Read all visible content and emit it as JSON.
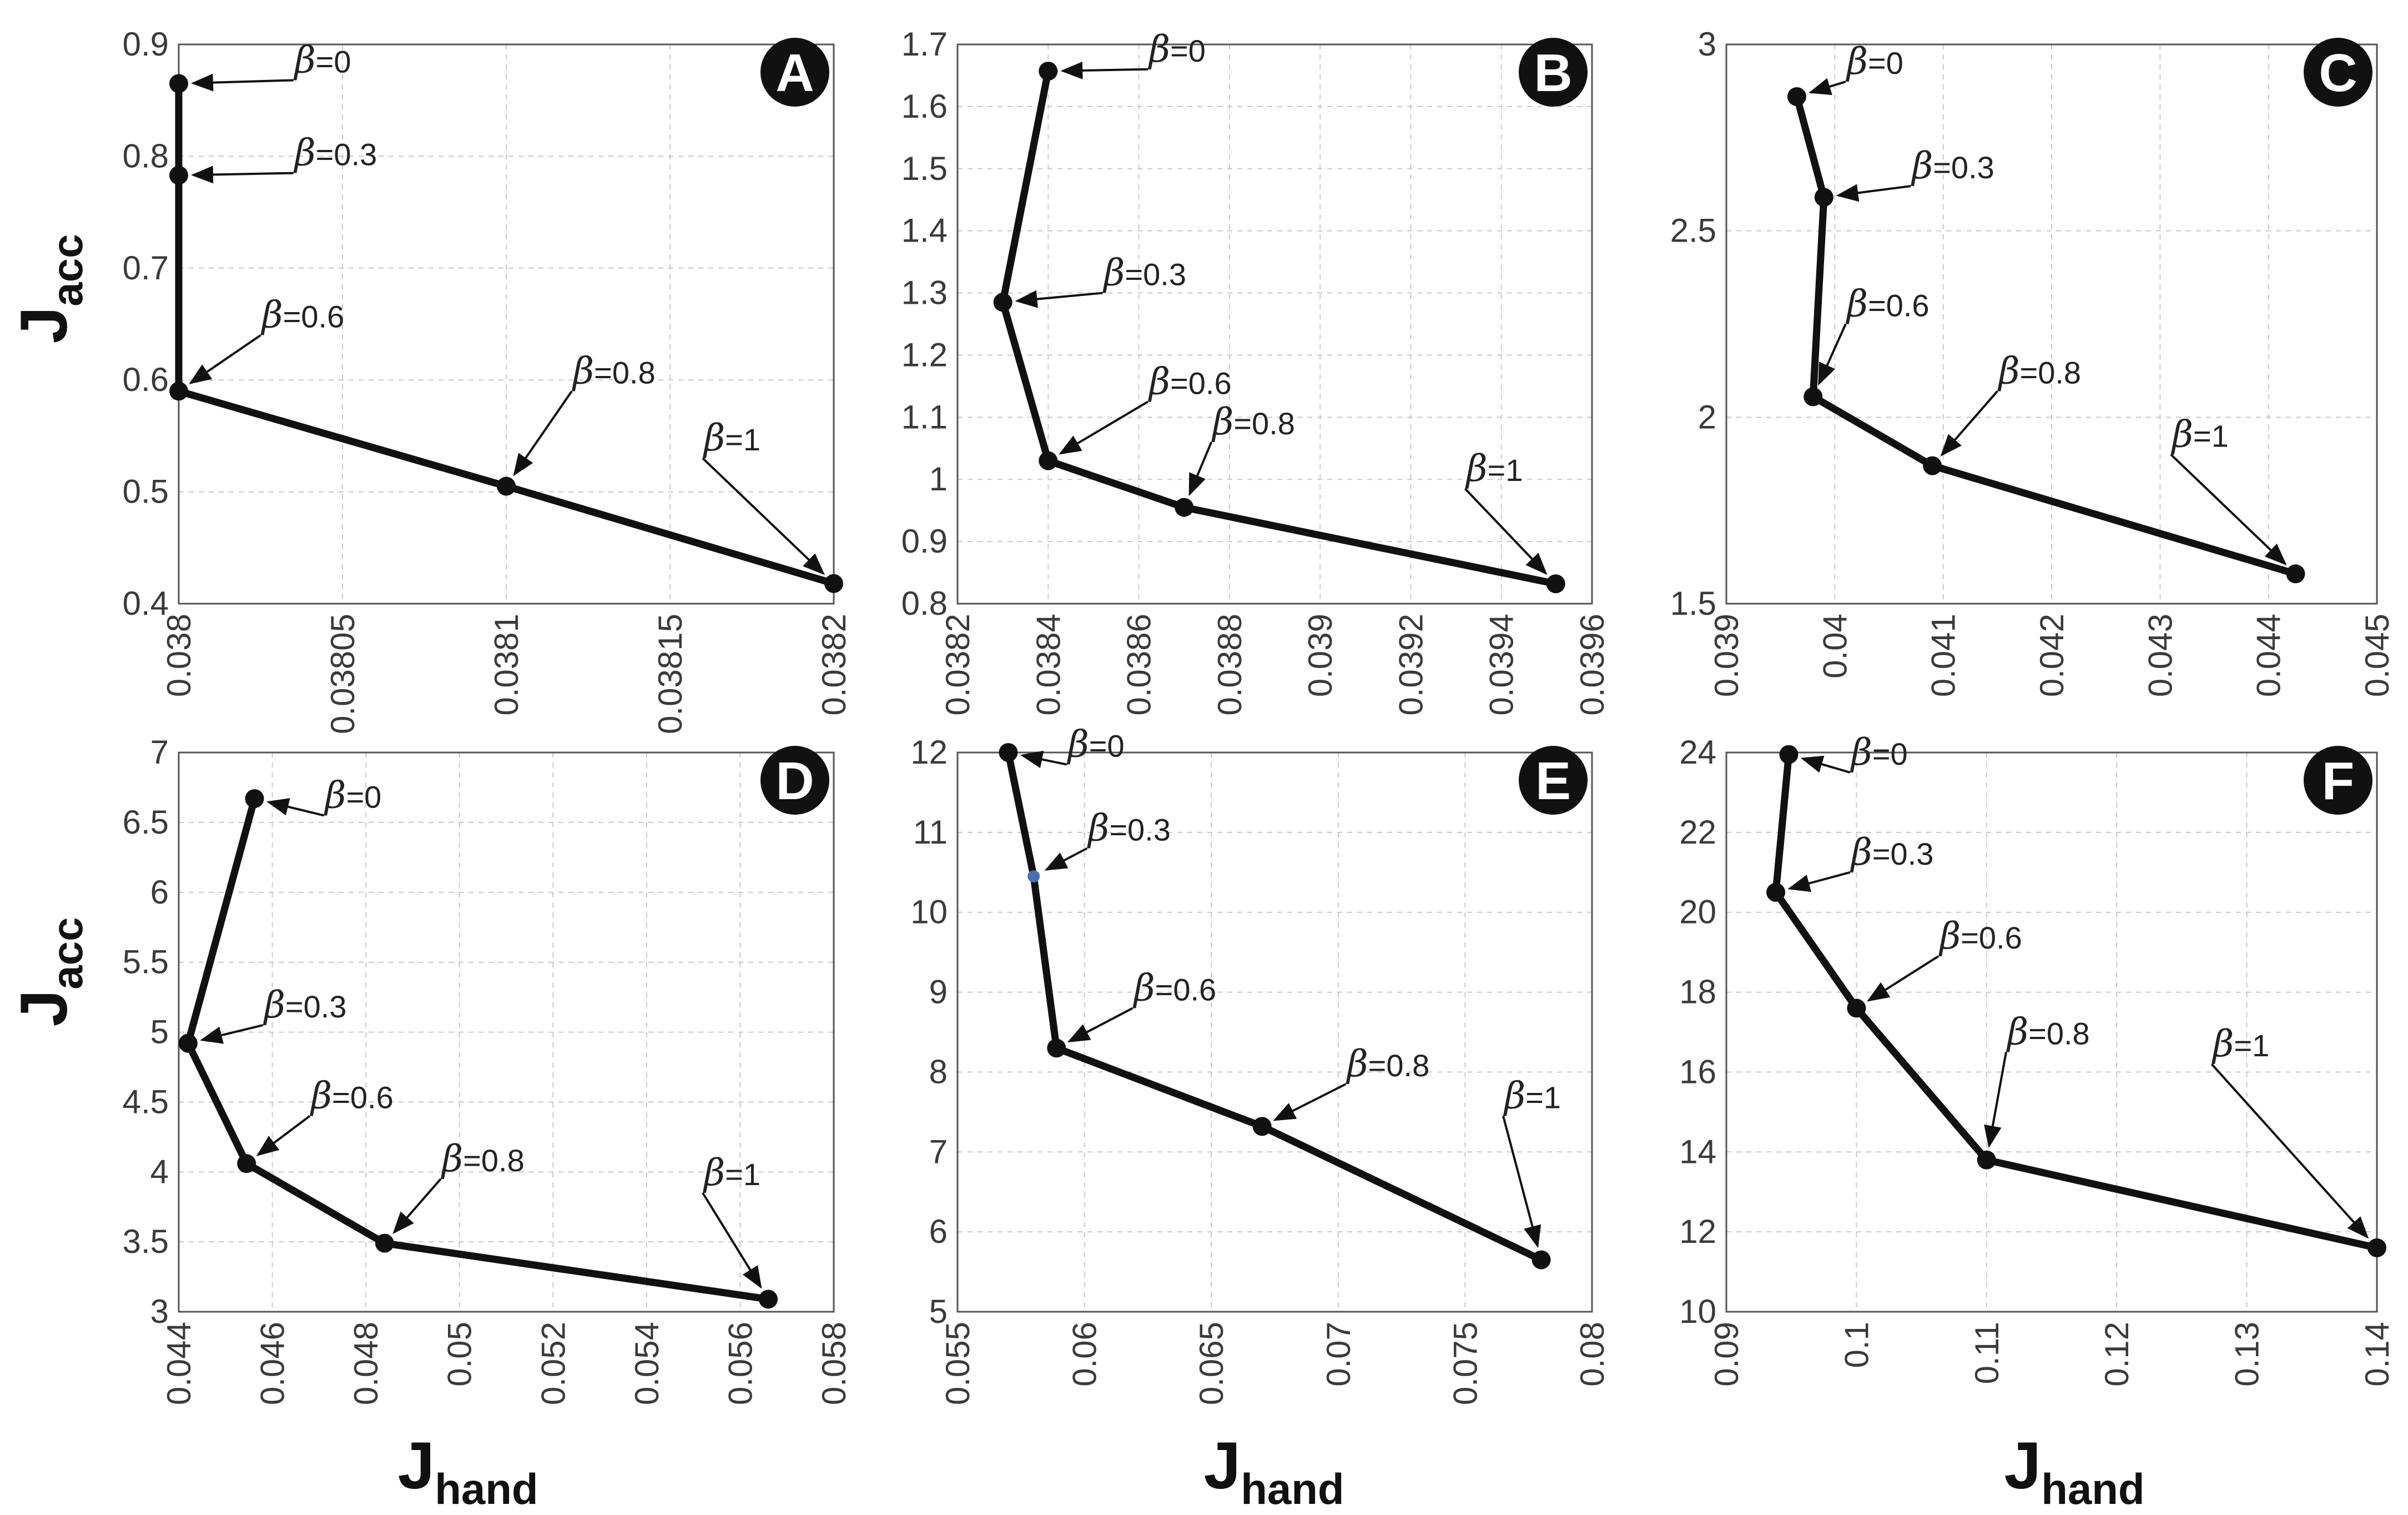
{
  "figure": {
    "xlabel": {
      "main": "J",
      "sub": "hand"
    },
    "ylabel": {
      "main": "J",
      "sub": "acc"
    }
  },
  "chart_data": [
    {
      "type": "line",
      "panel_label": "A",
      "xlim": [
        0.038,
        0.0382
      ],
      "ylim": [
        0.4,
        0.9
      ],
      "xticks": [
        0.038,
        0.03805,
        0.0381,
        0.03815,
        0.0382
      ],
      "xtick_labels": [
        "0.038",
        "0.03805",
        "0.0381",
        "0.03815",
        "0.0382"
      ],
      "yticks": [
        0.4,
        0.5,
        0.6,
        0.7,
        0.8,
        0.9
      ],
      "ytick_labels": [
        "0.4",
        "0.5",
        "0.6",
        "0.7",
        "0.8",
        "0.9"
      ],
      "points": [
        {
          "beta": "=0",
          "x": 0.038,
          "y": 0.865
        },
        {
          "beta": "=0.3",
          "x": 0.038,
          "y": 0.783
        },
        {
          "beta": "=0.6",
          "x": 0.038,
          "y": 0.59
        },
        {
          "beta": "=0.8",
          "x": 0.0381,
          "y": 0.505
        },
        {
          "beta": "=1",
          "x": 0.0382,
          "y": 0.418
        }
      ],
      "annotations": [
        {
          "text": "=0",
          "pt": 0,
          "tx": 0.038035,
          "ty": 0.868
        },
        {
          "text": "=0.3",
          "pt": 1,
          "tx": 0.038035,
          "ty": 0.785
        },
        {
          "text": "=0.6",
          "pt": 2,
          "tx": 0.038025,
          "ty": 0.64
        },
        {
          "text": "=0.8",
          "pt": 3,
          "tx": 0.03812,
          "ty": 0.59
        },
        {
          "text": "=1",
          "pt": 4,
          "tx": 0.03816,
          "ty": 0.53
        }
      ]
    },
    {
      "type": "line",
      "panel_label": "B",
      "xlim": [
        0.0382,
        0.0396
      ],
      "ylim": [
        0.8,
        1.7
      ],
      "xticks": [
        0.0382,
        0.0384,
        0.0386,
        0.0388,
        0.039,
        0.0392,
        0.0394,
        0.0396
      ],
      "xtick_labels": [
        "0.0382",
        "0.0384",
        "0.0386",
        "0.0388",
        "0.039",
        "0.0392",
        "0.0394",
        "0.0396"
      ],
      "yticks": [
        0.8,
        0.9,
        1.0,
        1.1,
        1.2,
        1.3,
        1.4,
        1.5,
        1.6,
        1.7
      ],
      "ytick_labels": [
        "0.8",
        "0.9",
        "1",
        "1.1",
        "1.2",
        "1.3",
        "1.4",
        "1.5",
        "1.6",
        "1.7"
      ],
      "points": [
        {
          "beta": "=0",
          "x": 0.0384,
          "y": 1.657
        },
        {
          "beta": "=0.3",
          "x": 0.0383,
          "y": 1.285
        },
        {
          "beta": "=0.6",
          "x": 0.0384,
          "y": 1.03
        },
        {
          "beta": "=0.8",
          "x": 0.0387,
          "y": 0.955
        },
        {
          "beta": "=1",
          "x": 0.03952,
          "y": 0.832
        }
      ],
      "annotations": [
        {
          "text": "=0",
          "pt": 0,
          "tx": 0.03862,
          "ty": 1.66
        },
        {
          "text": "=0.3",
          "pt": 1,
          "tx": 0.03852,
          "ty": 1.3
        },
        {
          "text": "=0.6",
          "pt": 2,
          "tx": 0.03862,
          "ty": 1.125
        },
        {
          "text": "=0.8",
          "pt": 3,
          "tx": 0.03876,
          "ty": 1.06
        },
        {
          "text": "=1",
          "pt": 4,
          "tx": 0.03932,
          "ty": 0.985
        }
      ]
    },
    {
      "type": "line",
      "panel_label": "C",
      "xlim": [
        0.039,
        0.045
      ],
      "ylim": [
        1.5,
        3.0
      ],
      "xticks": [
        0.039,
        0.04,
        0.041,
        0.042,
        0.043,
        0.044,
        0.045
      ],
      "xtick_labels": [
        "0.039",
        "0.04",
        "0.041",
        "0.042",
        "0.043",
        "0.044",
        "0.045"
      ],
      "yticks": [
        1.5,
        2.0,
        2.5,
        3.0
      ],
      "ytick_labels": [
        "1.5",
        "2",
        "2.5",
        "3"
      ],
      "points": [
        {
          "beta": "=0",
          "x": 0.03965,
          "y": 2.86
        },
        {
          "beta": "=0.3",
          "x": 0.0399,
          "y": 2.59
        },
        {
          "beta": "=0.6",
          "x": 0.0398,
          "y": 2.055
        },
        {
          "beta": "=0.8",
          "x": 0.0409,
          "y": 1.87
        },
        {
          "beta": "=1",
          "x": 0.04425,
          "y": 1.58
        }
      ],
      "annotations": [
        {
          "text": "=0",
          "pt": 0,
          "tx": 0.0401,
          "ty": 2.9
        },
        {
          "text": "=0.3",
          "pt": 1,
          "tx": 0.0407,
          "ty": 2.62
        },
        {
          "text": "=0.6",
          "pt": 2,
          "tx": 0.0401,
          "ty": 2.25
        },
        {
          "text": "=0.8",
          "pt": 3,
          "tx": 0.0415,
          "ty": 2.07
        },
        {
          "text": "=1",
          "pt": 4,
          "tx": 0.0431,
          "ty": 1.9
        }
      ]
    },
    {
      "type": "line",
      "panel_label": "D",
      "xlim": [
        0.044,
        0.058
      ],
      "ylim": [
        3.0,
        7.0
      ],
      "xticks": [
        0.044,
        0.046,
        0.048,
        0.05,
        0.052,
        0.054,
        0.056,
        0.058
      ],
      "xtick_labels": [
        "0.044",
        "0.046",
        "0.048",
        "0.05",
        "0.052",
        "0.054",
        "0.056",
        "0.058"
      ],
      "yticks": [
        3.0,
        3.5,
        4.0,
        4.5,
        5.0,
        5.5,
        6.0,
        6.5,
        7.0
      ],
      "ytick_labels": [
        "3",
        "3.5",
        "4",
        "4.5",
        "5",
        "5.5",
        "6",
        "6.5",
        "7"
      ],
      "points": [
        {
          "beta": "=0",
          "x": 0.04562,
          "y": 6.67
        },
        {
          "beta": "=0.3",
          "x": 0.0442,
          "y": 4.92
        },
        {
          "beta": "=0.6",
          "x": 0.04545,
          "y": 4.06
        },
        {
          "beta": "=0.8",
          "x": 0.0484,
          "y": 3.49
        },
        {
          "beta": "=1",
          "x": 0.0566,
          "y": 3.09
        }
      ],
      "annotations": [
        {
          "text": "=0",
          "pt": 0,
          "tx": 0.0471,
          "ty": 6.55
        },
        {
          "text": "=0.3",
          "pt": 1,
          "tx": 0.0458,
          "ty": 5.05
        },
        {
          "text": "=0.6",
          "pt": 2,
          "tx": 0.0468,
          "ty": 4.4
        },
        {
          "text": "=0.8",
          "pt": 3,
          "tx": 0.0496,
          "ty": 3.95
        },
        {
          "text": "=1",
          "pt": 4,
          "tx": 0.0552,
          "ty": 3.85
        }
      ]
    },
    {
      "type": "line",
      "panel_label": "E",
      "xlim": [
        0.055,
        0.08
      ],
      "ylim": [
        5.0,
        12.0
      ],
      "xticks": [
        0.055,
        0.06,
        0.065,
        0.07,
        0.075,
        0.08
      ],
      "xtick_labels": [
        "0.055",
        "0.06",
        "0.065",
        "0.07",
        "0.075",
        "0.08"
      ],
      "yticks": [
        5,
        6,
        7,
        8,
        9,
        10,
        11,
        12
      ],
      "ytick_labels": [
        "5",
        "6",
        "7",
        "8",
        "9",
        "10",
        "11",
        "12"
      ],
      "points": [
        {
          "beta": "=0",
          "x": 0.057,
          "y": 12.0
        },
        {
          "beta": "=0.3",
          "x": 0.058,
          "y": 10.45
        },
        {
          "beta": "=0.6",
          "x": 0.0589,
          "y": 8.3
        },
        {
          "beta": "=0.8",
          "x": 0.067,
          "y": 7.32
        },
        {
          "beta": "=1",
          "x": 0.078,
          "y": 5.65
        }
      ],
      "annotations": [
        {
          "text": "=0",
          "pt": 0,
          "tx": 0.0593,
          "ty": 11.85
        },
        {
          "text": "=0.3",
          "pt": 1,
          "tx": 0.0601,
          "ty": 10.8
        },
        {
          "text": "=0.6",
          "pt": 2,
          "tx": 0.0619,
          "ty": 8.8
        },
        {
          "text": "=0.8",
          "pt": 3,
          "tx": 0.0703,
          "ty": 7.85
        },
        {
          "text": "=1",
          "pt": 4,
          "tx": 0.0765,
          "ty": 7.45
        }
      ]
    },
    {
      "type": "line",
      "panel_label": "F",
      "xlim": [
        0.09,
        0.14
      ],
      "ylim": [
        10,
        24
      ],
      "xticks": [
        0.09,
        0.1,
        0.11,
        0.12,
        0.13,
        0.14
      ],
      "xtick_labels": [
        "0.09",
        "0.1",
        "0.11",
        "0.12",
        "0.13",
        "0.14"
      ],
      "yticks": [
        10,
        12,
        14,
        16,
        18,
        20,
        22,
        24
      ],
      "ytick_labels": [
        "10",
        "12",
        "14",
        "16",
        "18",
        "20",
        "22",
        "24"
      ],
      "points": [
        {
          "beta": "=0",
          "x": 0.0948,
          "y": 23.95
        },
        {
          "beta": "=0.3",
          "x": 0.0938,
          "y": 20.5
        },
        {
          "beta": "=0.6",
          "x": 0.1,
          "y": 17.6
        },
        {
          "beta": "=0.8",
          "x": 0.11,
          "y": 13.8
        },
        {
          "beta": "=1",
          "x": 0.14,
          "y": 11.6
        }
      ],
      "annotations": [
        {
          "text": "=0",
          "pt": 0,
          "tx": 0.0995,
          "ty": 23.5
        },
        {
          "text": "=0.3",
          "pt": 1,
          "tx": 0.0995,
          "ty": 21.0
        },
        {
          "text": "=0.6",
          "pt": 2,
          "tx": 0.1063,
          "ty": 18.9
        },
        {
          "text": "=0.8",
          "pt": 3,
          "tx": 0.1115,
          "ty": 16.5
        },
        {
          "text": "=1",
          "pt": 4,
          "tx": 0.1273,
          "ty": 16.2
        }
      ]
    }
  ]
}
